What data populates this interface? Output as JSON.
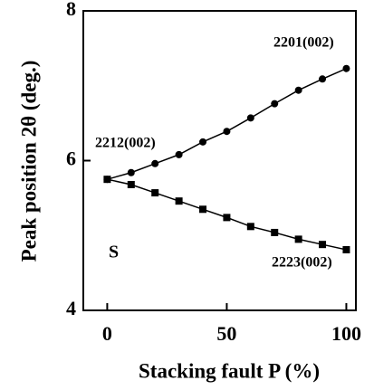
{
  "chart_data": {
    "type": "line",
    "x_label": "Stacking fault P (%)",
    "y_label": "Peak position 2θ (deg.)",
    "x": [
      0,
      10,
      20,
      30,
      40,
      50,
      60,
      70,
      80,
      90,
      100
    ],
    "series": [
      {
        "name": "2201(002)",
        "color": "#000000",
        "marker": "circle",
        "values": [
          5.75,
          5.84,
          5.96,
          6.08,
          6.25,
          6.39,
          6.57,
          6.76,
          6.94,
          7.09,
          7.23
        ]
      },
      {
        "name": "2223(002)",
        "color": "#000000",
        "marker": "square",
        "values": [
          5.75,
          5.68,
          5.57,
          5.46,
          5.35,
          5.24,
          5.12,
          5.04,
          4.95,
          4.88,
          4.81
        ]
      }
    ],
    "annotations": [
      "2212(002)",
      "S"
    ],
    "xlim": [
      -10,
      104
    ],
    "ylim": [
      4,
      8
    ],
    "xticks": [
      0,
      50,
      100
    ],
    "yticks": [
      4,
      6,
      8
    ]
  }
}
